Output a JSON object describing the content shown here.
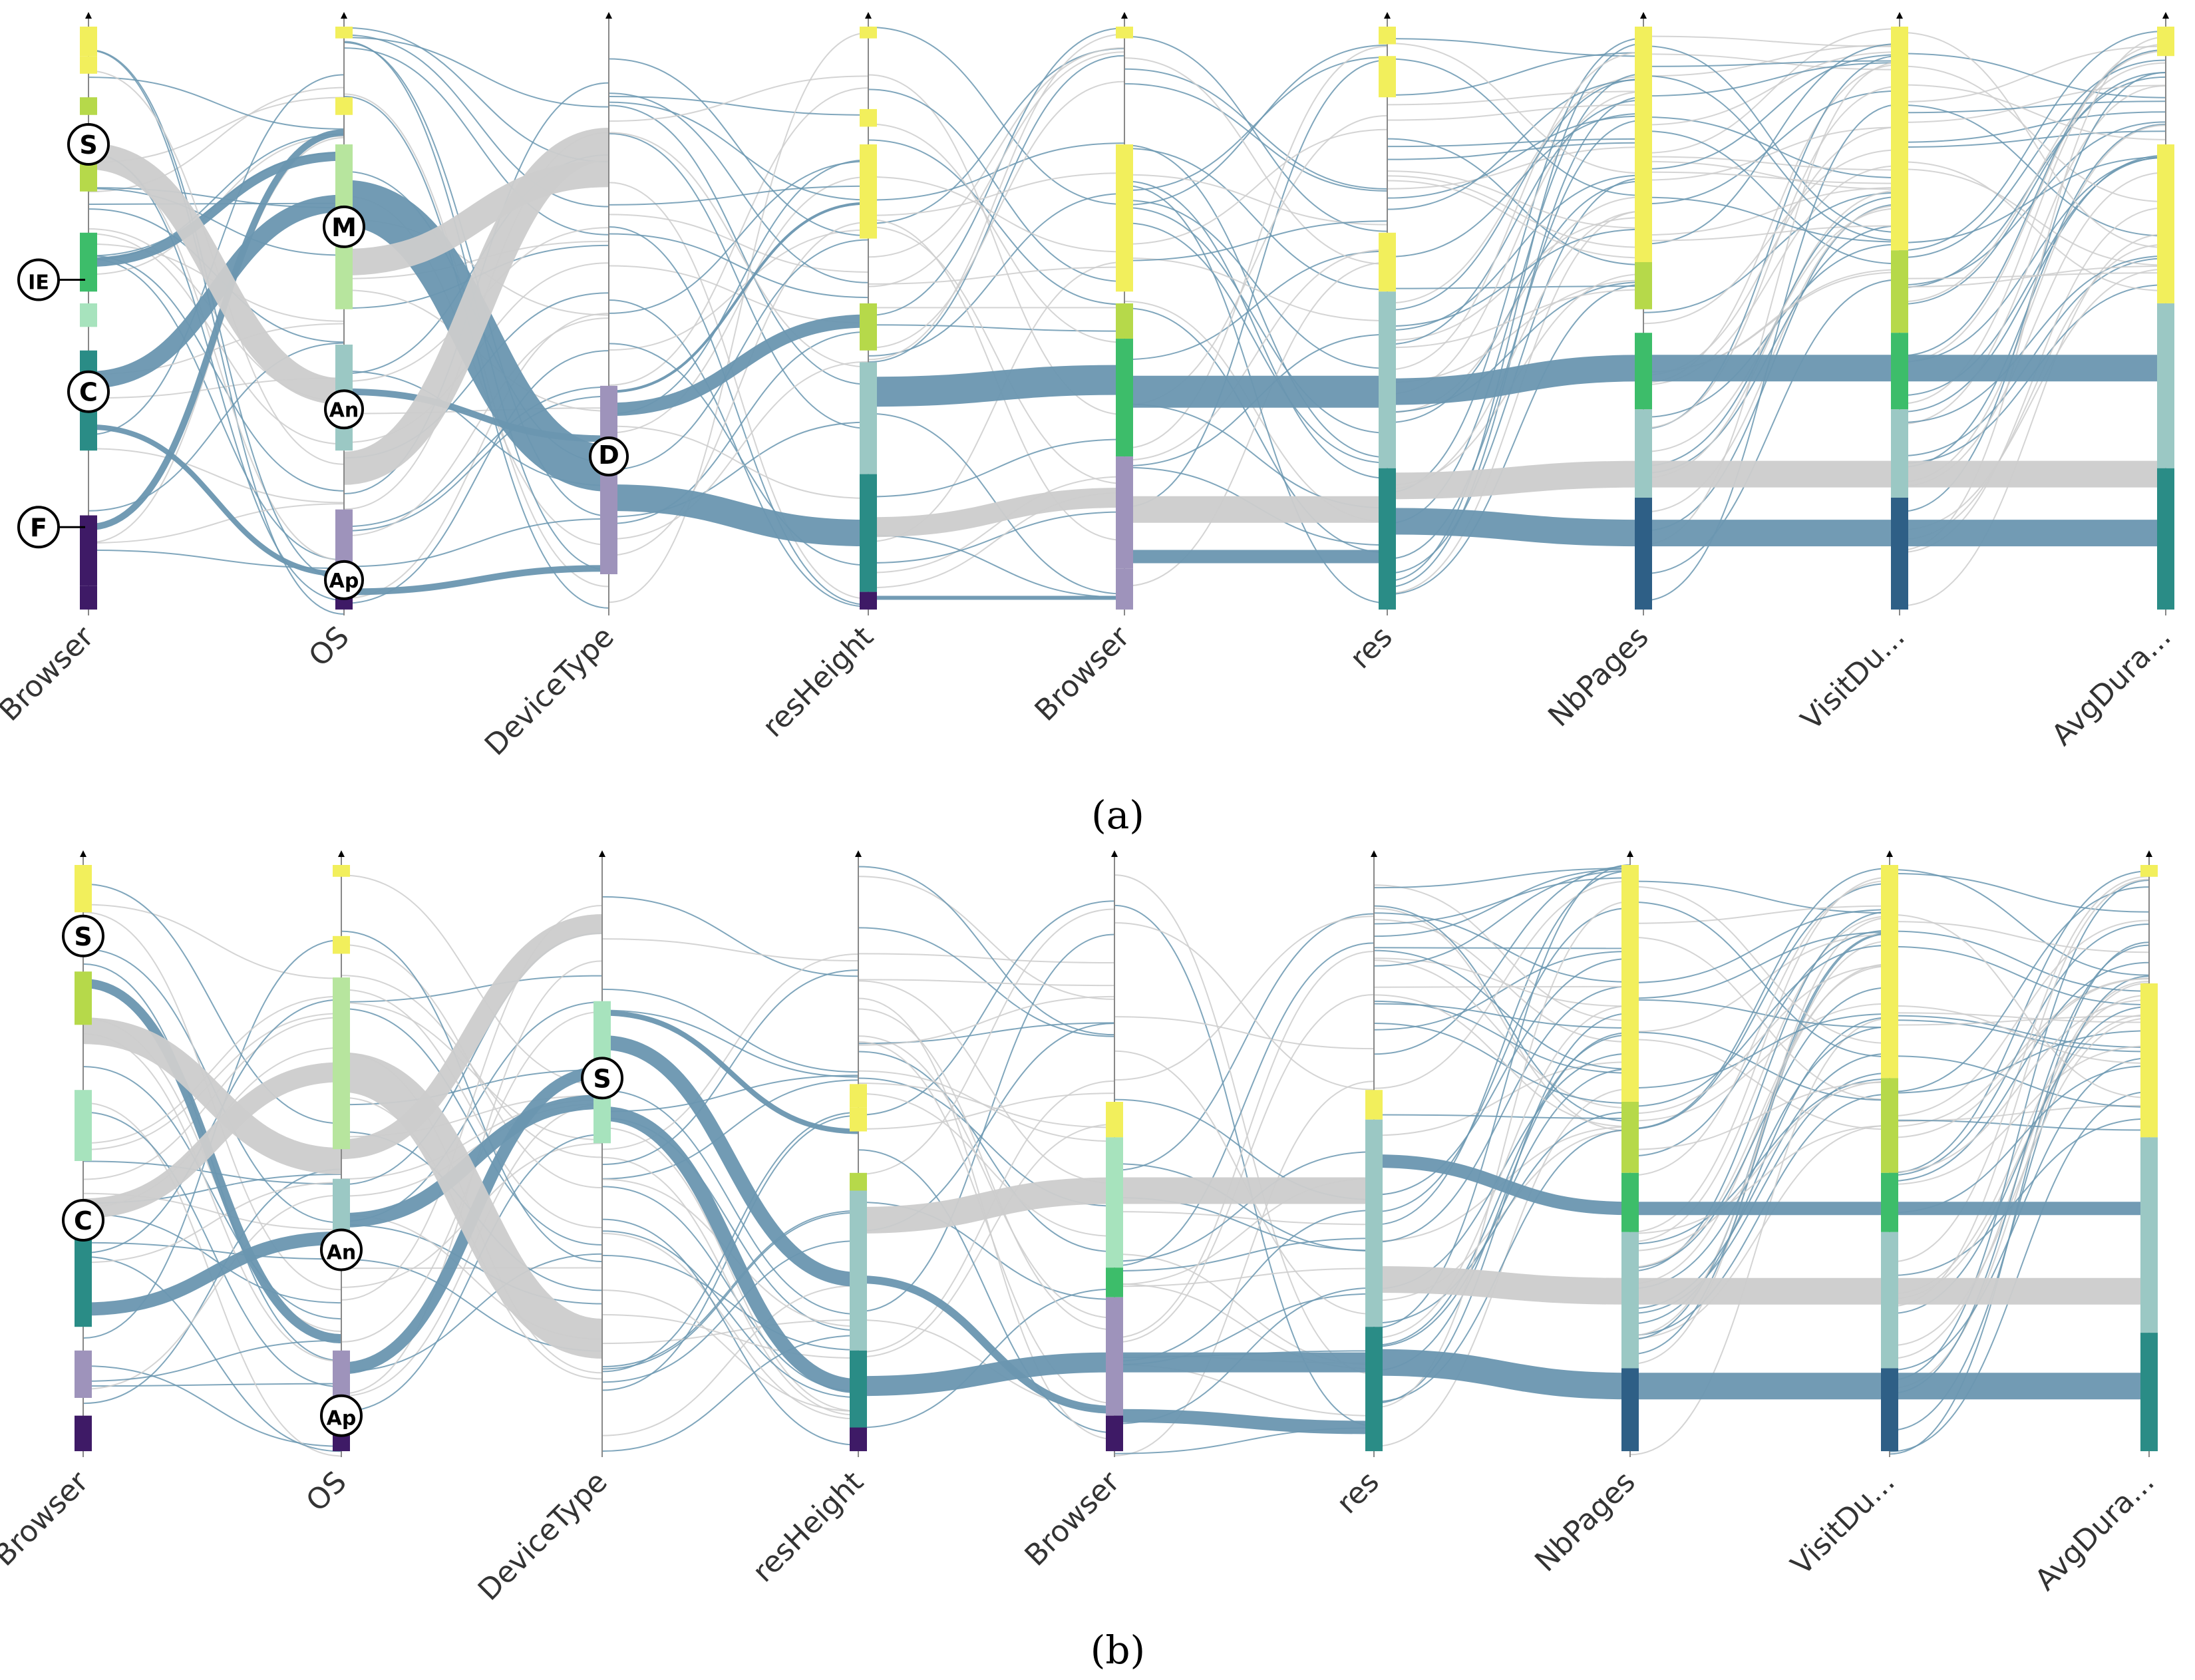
{
  "figure": {
    "colors": {
      "selected_flow": "#6a96b0",
      "context_flow": "#cccccc",
      "axis": "#888888",
      "yellow": "#f2ef5c",
      "lime": "#b6d94a",
      "green": "#3dbd6a",
      "mint": "#a7e3bd",
      "teal": "#2a8c86",
      "pale_teal": "#9bc8c4",
      "steel": "#2e5f86",
      "lavender": "#9e93bb",
      "purple": "#3e1a66",
      "light_green": "#b7e59e"
    }
  },
  "chart_data": [
    {
      "type": "parallel-sets",
      "panel": "a",
      "caption": "(a)",
      "axes": [
        "Browser",
        "OS",
        "DeviceType",
        "resHeight",
        "Browser",
        "res",
        "NbPages",
        "VisitDu...",
        "AvgDura..."
      ],
      "annotations": [
        {
          "axis": "Browser",
          "label": "S"
        },
        {
          "axis": "Browser",
          "label": "IE"
        },
        {
          "axis": "Browser",
          "label": "C"
        },
        {
          "axis": "Browser",
          "label": "F"
        },
        {
          "axis": "OS",
          "label": "M"
        },
        {
          "axis": "OS",
          "label": "An"
        },
        {
          "axis": "OS",
          "label": "Ap"
        },
        {
          "axis": "DeviceType",
          "label": "D"
        }
      ],
      "selection": {
        "axis": "DeviceType",
        "category": "D"
      }
    },
    {
      "type": "parallel-sets",
      "panel": "b",
      "caption": "(b)",
      "axes": [
        "Browser",
        "OS",
        "DeviceType",
        "resHeight",
        "Browser",
        "res",
        "NbPages",
        "VisitDu...",
        "AvgDura..."
      ],
      "annotations": [
        {
          "axis": "Browser",
          "label": "S"
        },
        {
          "axis": "Browser",
          "label": "C"
        },
        {
          "axis": "OS",
          "label": "An"
        },
        {
          "axis": "OS",
          "label": "Ap"
        },
        {
          "axis": "DeviceType",
          "label": "S"
        }
      ],
      "selection": {
        "axis": "DeviceType",
        "category": "S"
      }
    }
  ]
}
